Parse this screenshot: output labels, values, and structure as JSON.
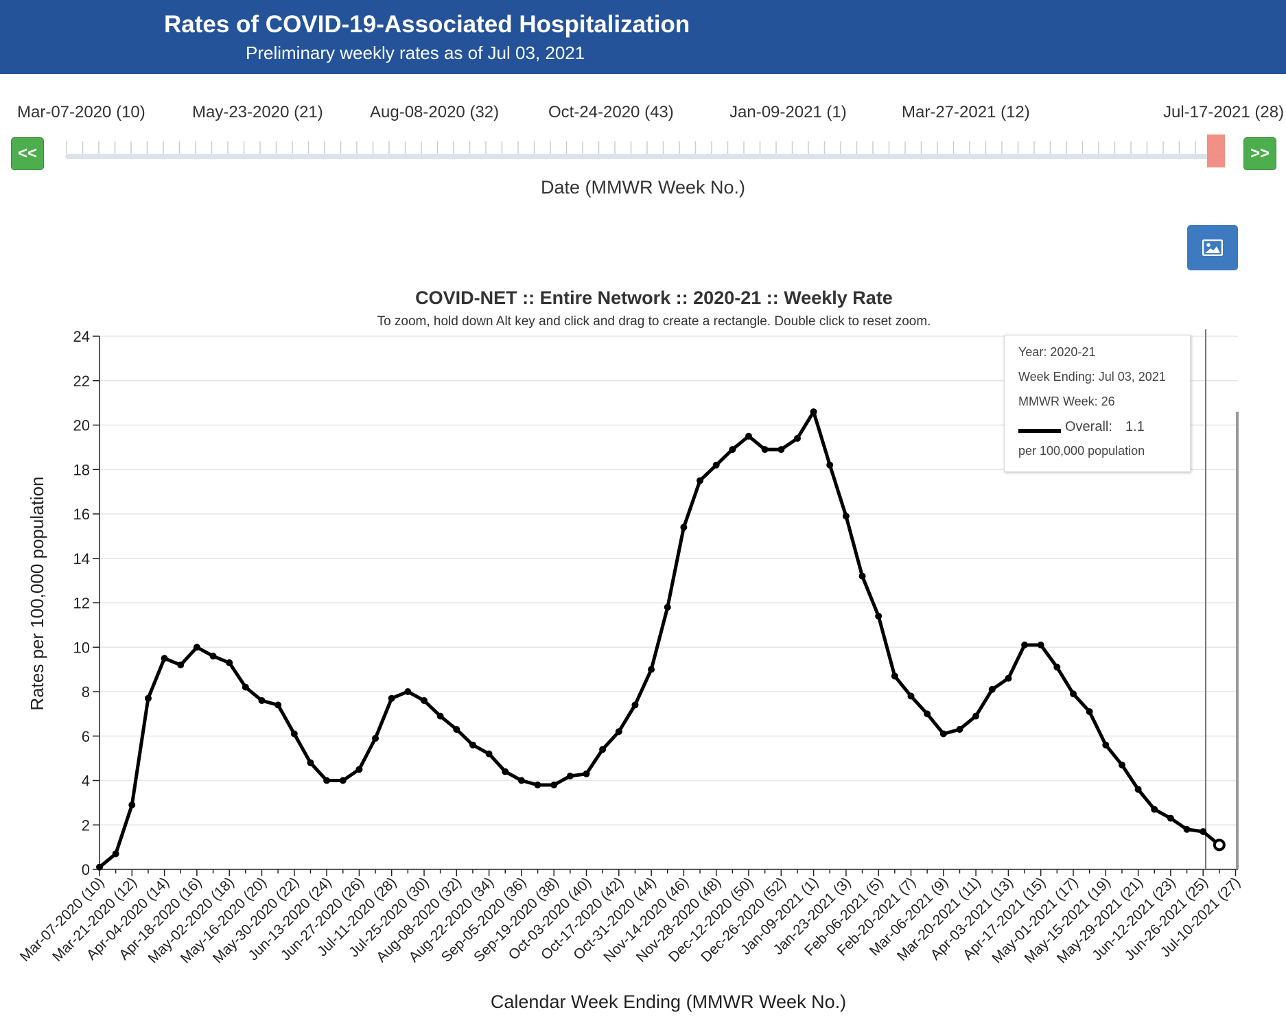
{
  "header": {
    "title": "Rates of COVID-19-Associated Hospitalization",
    "subtitle": "Preliminary weekly rates as of Jul 03, 2021"
  },
  "slider": {
    "labels": [
      "Mar-07-2020 (10)",
      "May-23-2020 (21)",
      "Aug-08-2020 (32)",
      "Oct-24-2020 (43)",
      "Jan-09-2021 (1)",
      "Mar-27-2021 (12)",
      "Jul-17-2021 (28)"
    ],
    "prev_label": "<<",
    "next_label": ">>",
    "caption": "Date (MMWR Week No.)"
  },
  "colors": {
    "banner": "#24539a",
    "series": "#000000",
    "nav_button": "#4cae4c",
    "slider_handle": "#f08a80",
    "image_button": "#3d7abf"
  },
  "icons": {
    "export_button": "image-icon"
  },
  "chart_data": {
    "type": "line",
    "title": "COVID-NET :: Entire Network :: 2020-21 :: Weekly Rate",
    "subtitle": "To zoom, hold down Alt key and click and drag to create a rectangle. Double click to reset zoom.",
    "xlabel": "Calendar Week Ending (MMWR Week No.)",
    "ylabel": "Rates per 100,000 population",
    "ylim": [
      0,
      24
    ],
    "yticks": [
      0,
      2,
      4,
      6,
      8,
      10,
      12,
      14,
      16,
      18,
      20,
      22,
      24
    ],
    "grid": true,
    "x_tick_labels": [
      "Mar-07-2020 (10)",
      "Mar-21-2020 (12)",
      "Apr-04-2020 (14)",
      "Apr-18-2020 (16)",
      "May-02-2020 (18)",
      "May-16-2020 (20)",
      "May-30-2020 (22)",
      "Jun-13-2020 (24)",
      "Jun-27-2020 (26)",
      "Jul-11-2020 (28)",
      "Jul-25-2020 (30)",
      "Aug-08-2020 (32)",
      "Aug-22-2020 (34)",
      "Sep-05-2020 (36)",
      "Sep-19-2020 (38)",
      "Oct-03-2020 (40)",
      "Oct-17-2020 (42)",
      "Oct-31-2020 (44)",
      "Nov-14-2020 (46)",
      "Nov-28-2020 (48)",
      "Dec-12-2020 (50)",
      "Dec-26-2020 (52)",
      "Jan-09-2021 (1)",
      "Jan-23-2021 (3)",
      "Feb-06-2021 (5)",
      "Feb-20-2021 (7)",
      "Mar-06-2021 (9)",
      "Mar-20-2021 (11)",
      "Apr-03-2021 (13)",
      "Apr-17-2021 (15)",
      "May-01-2021 (17)",
      "May-15-2021 (19)",
      "May-29-2021 (21)",
      "Jun-12-2021 (23)",
      "Jun-26-2021 (25)",
      "Jul-10-2021 (27)"
    ],
    "series": [
      {
        "name": "Overall",
        "values": [
          0.1,
          0.7,
          2.9,
          7.7,
          9.5,
          9.2,
          10.0,
          9.6,
          9.3,
          8.2,
          7.6,
          7.4,
          6.1,
          4.8,
          4.0,
          4.0,
          4.5,
          5.9,
          7.7,
          8.0,
          7.6,
          6.9,
          6.3,
          5.6,
          5.2,
          4.4,
          4.0,
          3.8,
          3.8,
          4.2,
          4.3,
          5.4,
          6.2,
          7.4,
          9.0,
          11.8,
          15.4,
          17.5,
          18.2,
          18.9,
          19.5,
          18.9,
          18.9,
          19.4,
          20.6,
          18.2,
          15.9,
          13.2,
          11.4,
          8.7,
          7.8,
          7.0,
          6.1,
          6.3,
          6.9,
          8.1,
          8.6,
          10.1,
          10.1,
          9.1,
          7.9,
          7.1,
          5.6,
          4.7,
          3.6,
          2.7,
          2.3,
          1.8,
          1.7,
          1.1
        ]
      }
    ],
    "tooltip": {
      "year": "Year: 2020-21",
      "week_ending": "Week Ending: Jul 03, 2021",
      "mmwr_week": "MMWR Week: 26",
      "series_label": "Overall:",
      "series_value": "1.1",
      "unit": "per 100,000 population"
    }
  }
}
